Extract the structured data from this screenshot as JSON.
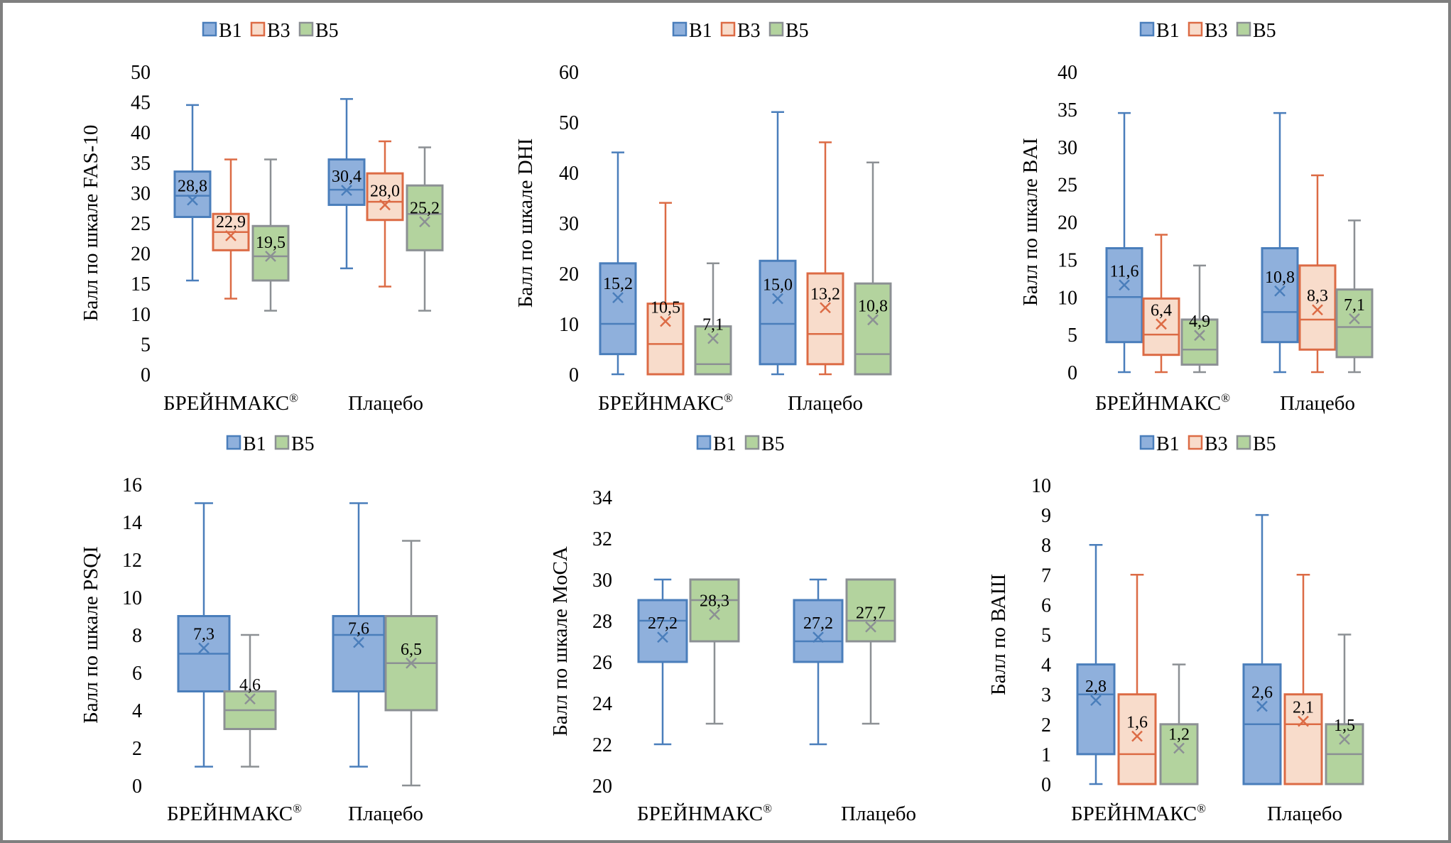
{
  "figure": {
    "categories": [
      "БРЕЙНМАКС®",
      "Плацебо"
    ],
    "series_colors": {
      "B1": {
        "fill": "#8fb0dc",
        "stroke": "#4a7ebb"
      },
      "B3": {
        "fill": "#f8dccb",
        "stroke": "#dc6b45"
      },
      "B5": {
        "fill": "#b3d39e",
        "stroke": "#8c9094"
      }
    },
    "border_color": "#7f7f7f"
  },
  "chart_data": [
    {
      "type": "box",
      "title": "",
      "ylabel": "Балл по шкале FAS-10",
      "xlabel": "",
      "ylim": [
        0,
        50
      ],
      "yticks": [
        0,
        5,
        10,
        15,
        20,
        25,
        30,
        35,
        40,
        45,
        50
      ],
      "legend": {
        "position": "top-center",
        "entries": [
          "B1",
          "B3",
          "B5"
        ]
      },
      "categories": [
        "БРЕЙНМАКС®",
        "Плацебо"
      ],
      "series": [
        {
          "name": "B1",
          "boxes": [
            {
              "min": 15.5,
              "q1": 26,
              "median": 29.5,
              "q3": 33.5,
              "max": 44.5,
              "mean": 28.8,
              "label": "28,8"
            },
            {
              "min": 17.5,
              "q1": 28,
              "median": 30.5,
              "q3": 35.5,
              "max": 45.5,
              "mean": 30.4,
              "label": "30,4"
            }
          ]
        },
        {
          "name": "B3",
          "boxes": [
            {
              "min": 12.5,
              "q1": 20.5,
              "median": 23.5,
              "q3": 26.5,
              "max": 35.5,
              "mean": 22.9,
              "label": "22,9"
            },
            {
              "min": 14.5,
              "q1": 25.5,
              "median": 28.5,
              "q3": 33.2,
              "max": 38.5,
              "mean": 28.0,
              "label": "28,0"
            }
          ]
        },
        {
          "name": "B5",
          "boxes": [
            {
              "min": 10.5,
              "q1": 15.5,
              "median": 19.5,
              "q3": 24.5,
              "max": 35.5,
              "mean": 19.5,
              "label": "19,5"
            },
            {
              "min": 10.5,
              "q1": 20.5,
              "median": 26.5,
              "q3": 31.2,
              "max": 37.5,
              "mean": 25.2,
              "label": "25,2"
            }
          ]
        }
      ]
    },
    {
      "type": "box",
      "title": "",
      "ylabel": "Балл по шкале DHI",
      "xlabel": "",
      "ylim": [
        0,
        60
      ],
      "yticks": [
        0,
        10,
        20,
        30,
        40,
        50,
        60
      ],
      "legend": {
        "position": "top-center",
        "entries": [
          "B1",
          "B3",
          "B5"
        ]
      },
      "categories": [
        "БРЕЙНМАКС®",
        "Плацебо"
      ],
      "series": [
        {
          "name": "B1",
          "boxes": [
            {
              "min": 0,
              "q1": 4,
              "median": 10,
              "q3": 22,
              "max": 44,
              "mean": 15.2,
              "label": "15,2"
            },
            {
              "min": 0,
              "q1": 2,
              "median": 10,
              "q3": 22.5,
              "max": 52,
              "mean": 15.0,
              "label": "15,0"
            }
          ]
        },
        {
          "name": "B3",
          "boxes": [
            {
              "min": 0,
              "q1": 0,
              "median": 6,
              "q3": 14,
              "max": 34,
              "mean": 10.5,
              "label": "10,5"
            },
            {
              "min": 0,
              "q1": 2,
              "median": 8,
              "q3": 20,
              "max": 46,
              "mean": 13.2,
              "label": "13,2"
            }
          ]
        },
        {
          "name": "B5",
          "boxes": [
            {
              "min": 0,
              "q1": 0,
              "median": 2,
              "q3": 9.5,
              "max": 22,
              "mean": 7.1,
              "label": "7,1"
            },
            {
              "min": 0,
              "q1": 0,
              "median": 4,
              "q3": 18,
              "max": 42,
              "mean": 10.8,
              "label": "10,8"
            }
          ]
        }
      ]
    },
    {
      "type": "box",
      "title": "",
      "ylabel": "Балл по шкале BAI",
      "xlabel": "",
      "ylim": [
        0,
        40
      ],
      "yticks": [
        0,
        5,
        10,
        15,
        20,
        25,
        30,
        35,
        40
      ],
      "legend": {
        "position": "top-center",
        "entries": [
          "B1",
          "B3",
          "B5"
        ]
      },
      "categories": [
        "БРЕЙНМАКС®",
        "Плацебо"
      ],
      "series": [
        {
          "name": "B1",
          "boxes": [
            {
              "min": 0,
              "q1": 4,
              "median": 10,
              "q3": 16.5,
              "max": 34.5,
              "mean": 11.6,
              "label": "11,6"
            },
            {
              "min": 0,
              "q1": 4,
              "median": 8,
              "q3": 16.5,
              "max": 34.5,
              "mean": 10.8,
              "label": "10,8"
            }
          ]
        },
        {
          "name": "B3",
          "boxes": [
            {
              "min": 0,
              "q1": 2.3,
              "median": 5,
              "q3": 9.8,
              "max": 18.3,
              "mean": 6.4,
              "label": "6,4"
            },
            {
              "min": 0,
              "q1": 3,
              "median": 7,
              "q3": 14.2,
              "max": 26.2,
              "mean": 8.3,
              "label": "8,3"
            }
          ]
        },
        {
          "name": "B5",
          "boxes": [
            {
              "min": 0,
              "q1": 1,
              "median": 3,
              "q3": 7,
              "max": 14.2,
              "mean": 4.9,
              "label": "4,9"
            },
            {
              "min": 0,
              "q1": 2,
              "median": 6,
              "q3": 11,
              "max": 20.2,
              "mean": 7.1,
              "label": "7,1"
            }
          ]
        }
      ]
    },
    {
      "type": "box",
      "title": "",
      "ylabel": "Балл по шкале PSQI",
      "xlabel": "",
      "ylim": [
        0,
        16
      ],
      "yticks": [
        0,
        2,
        4,
        6,
        8,
        10,
        12,
        14,
        16
      ],
      "legend": {
        "position": "top-center",
        "entries": [
          "B1",
          "B5"
        ]
      },
      "categories": [
        "БРЕЙНМАКС®",
        "Плацебо"
      ],
      "series": [
        {
          "name": "B1",
          "boxes": [
            {
              "min": 1,
              "q1": 5,
              "median": 7,
              "q3": 9,
              "max": 15,
              "mean": 7.3,
              "label": "7,3"
            },
            {
              "min": 1,
              "q1": 5,
              "median": 8,
              "q3": 9,
              "max": 15,
              "mean": 7.6,
              "label": "7,6"
            }
          ]
        },
        {
          "name": "B5",
          "boxes": [
            {
              "min": 1,
              "q1": 3,
              "median": 4,
              "q3": 5,
              "max": 8,
              "mean": 4.6,
              "label": "4,6"
            },
            {
              "min": 0,
              "q1": 4,
              "median": 6.5,
              "q3": 9,
              "max": 13,
              "mean": 6.5,
              "label": "6,5"
            }
          ]
        }
      ]
    },
    {
      "type": "box",
      "title": "",
      "ylabel": "Балл по шкале MoCA",
      "xlabel": "",
      "ylim": [
        20,
        34
      ],
      "yticks": [
        20,
        22,
        24,
        26,
        28,
        30,
        32,
        34
      ],
      "legend": {
        "position": "top-center",
        "entries": [
          "B1",
          "B5"
        ]
      },
      "categories": [
        "БРЕЙНМАКС®",
        "Плацебо"
      ],
      "series": [
        {
          "name": "B1",
          "boxes": [
            {
              "min": 22,
              "q1": 26,
              "median": 28,
              "q3": 29,
              "max": 30,
              "mean": 27.2,
              "label": "27,2"
            },
            {
              "min": 22,
              "q1": 26,
              "median": 27,
              "q3": 29,
              "max": 30,
              "mean": 27.2,
              "label": "27,2"
            }
          ]
        },
        {
          "name": "B5",
          "boxes": [
            {
              "min": 23,
              "q1": 27,
              "median": 29,
              "q3": 30,
              "max": 30,
              "mean": 28.3,
              "label": "28,3"
            },
            {
              "min": 23,
              "q1": 27,
              "median": 28,
              "q3": 30,
              "max": 30,
              "mean": 27.7,
              "label": "27,7"
            }
          ]
        }
      ]
    },
    {
      "type": "box",
      "title": "",
      "ylabel": "Балл по ВАШ",
      "xlabel": "",
      "ylim": [
        0,
        10
      ],
      "yticks": [
        0,
        1,
        2,
        3,
        4,
        5,
        6,
        7,
        8,
        9,
        10
      ],
      "legend": {
        "position": "top-center",
        "entries": [
          "B1",
          "B3",
          "B5"
        ]
      },
      "categories": [
        "БРЕЙНМАКС®",
        "Плацебо"
      ],
      "series": [
        {
          "name": "B1",
          "boxes": [
            {
              "min": 0,
              "q1": 1,
              "median": 3,
              "q3": 4,
              "max": 8,
              "mean": 2.8,
              "label": "2,8"
            },
            {
              "min": 0,
              "q1": 0,
              "median": 2,
              "q3": 4,
              "max": 9,
              "mean": 2.6,
              "label": "2,6"
            }
          ]
        },
        {
          "name": "B3",
          "boxes": [
            {
              "min": 0,
              "q1": 0,
              "median": 1,
              "q3": 3,
              "max": 7,
              "mean": 1.6,
              "label": "1,6"
            },
            {
              "min": 0,
              "q1": 0,
              "median": 2,
              "q3": 3,
              "max": 7,
              "mean": 2.1,
              "label": "2,1"
            }
          ]
        },
        {
          "name": "B5",
          "boxes": [
            {
              "min": 0,
              "q1": 0,
              "median": 0,
              "q3": 2,
              "max": 4,
              "mean": 1.2,
              "label": "1,2"
            },
            {
              "min": 0,
              "q1": 0,
              "median": 1,
              "q3": 2,
              "max": 5,
              "mean": 1.5,
              "label": "1,5"
            }
          ]
        }
      ]
    }
  ]
}
